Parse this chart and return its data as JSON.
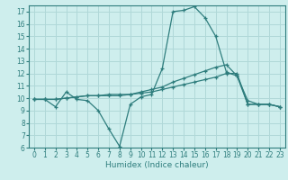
{
  "background_color": "#ceeeed",
  "grid_color": "#b0d8d8",
  "line_color": "#2e7d7d",
  "xlabel": "Humidex (Indice chaleur)",
  "xlim": [
    -0.5,
    23.5
  ],
  "ylim": [
    6,
    17.5
  ],
  "yticks": [
    6,
    7,
    8,
    9,
    10,
    11,
    12,
    13,
    14,
    15,
    16,
    17
  ],
  "xticks": [
    0,
    1,
    2,
    3,
    4,
    5,
    6,
    7,
    8,
    9,
    10,
    11,
    12,
    13,
    14,
    15,
    16,
    17,
    18,
    19,
    20,
    21,
    22,
    23
  ],
  "series": [
    {
      "x": [
        0,
        1,
        2,
        3,
        4,
        5,
        6,
        7,
        8,
        9,
        10,
        11,
        12,
        13,
        14,
        15,
        16,
        17,
        18,
        19,
        20,
        21,
        22,
        23
      ],
      "y": [
        9.9,
        9.9,
        9.3,
        10.5,
        9.9,
        9.8,
        9.0,
        7.5,
        6.1,
        9.5,
        10.1,
        10.3,
        12.4,
        17.0,
        17.1,
        17.4,
        16.5,
        15.0,
        12.1,
        11.8,
        9.5,
        9.5,
        9.5,
        9.3
      ]
    },
    {
      "x": [
        0,
        1,
        2,
        3,
        4,
        5,
        6,
        7,
        8,
        9,
        10,
        11,
        12,
        13,
        14,
        15,
        16,
        17,
        18,
        19,
        20,
        21,
        22,
        23
      ],
      "y": [
        9.9,
        9.9,
        9.9,
        10.0,
        10.1,
        10.2,
        10.2,
        10.3,
        10.3,
        10.3,
        10.5,
        10.7,
        10.9,
        11.3,
        11.6,
        11.9,
        12.2,
        12.5,
        12.7,
        11.8,
        9.8,
        9.5,
        9.5,
        9.3
      ]
    },
    {
      "x": [
        0,
        1,
        2,
        3,
        4,
        5,
        6,
        7,
        8,
        9,
        10,
        11,
        12,
        13,
        14,
        15,
        16,
        17,
        18,
        19,
        20,
        21,
        22,
        23
      ],
      "y": [
        9.9,
        9.9,
        9.9,
        10.0,
        10.1,
        10.2,
        10.2,
        10.2,
        10.2,
        10.3,
        10.4,
        10.5,
        10.7,
        10.9,
        11.1,
        11.3,
        11.5,
        11.7,
        12.0,
        12.0,
        9.5,
        9.5,
        9.5,
        9.3
      ]
    }
  ]
}
